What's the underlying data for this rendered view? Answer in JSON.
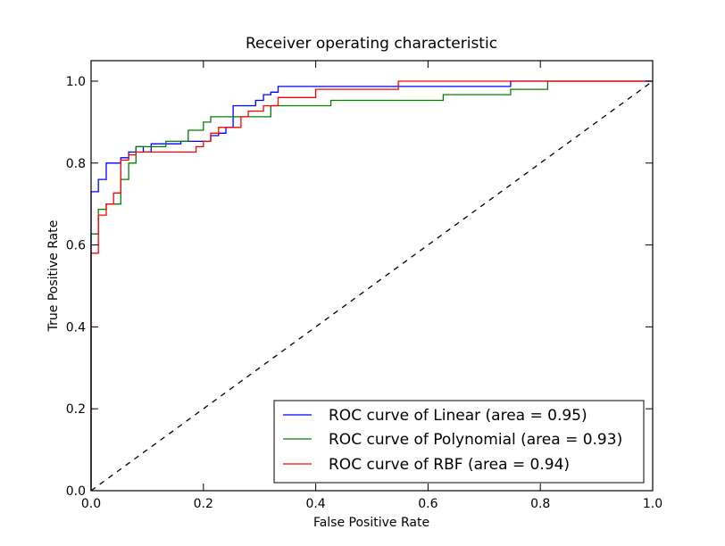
{
  "chart_data": {
    "type": "line",
    "title": "Receiver operating characteristic",
    "xlabel": "False Positive Rate",
    "ylabel": "True Positive Rate",
    "xlim": [
      0.0,
      1.0
    ],
    "ylim": [
      0.0,
      1.05
    ],
    "xticks": [
      0.0,
      0.2,
      0.4,
      0.6,
      0.8,
      1.0
    ],
    "yticks": [
      0.0,
      0.2,
      0.4,
      0.6,
      0.8,
      1.0
    ],
    "xtick_labels": [
      "0.0",
      "0.2",
      "0.4",
      "0.6",
      "0.8",
      "1.0"
    ],
    "ytick_labels": [
      "0.0",
      "0.2",
      "0.4",
      "0.6",
      "0.8",
      "1.0"
    ],
    "grid": false,
    "legend_position": "lower-right",
    "series": [
      {
        "name": "ROC curve of Linear (area = 0.95)",
        "color": "#0000ff",
        "style": "solid",
        "x": [
          0.0,
          0.0,
          0.013,
          0.013,
          0.027,
          0.027,
          0.053,
          0.053,
          0.067,
          0.067,
          0.08,
          0.08,
          0.093,
          0.093,
          0.107,
          0.107,
          0.16,
          0.16,
          0.213,
          0.213,
          0.227,
          0.227,
          0.24,
          0.24,
          0.253,
          0.253,
          0.293,
          0.293,
          0.307,
          0.307,
          0.32,
          0.32,
          0.333,
          0.333,
          0.747,
          0.747,
          1.0
        ],
        "y": [
          0.0,
          0.73,
          0.73,
          0.76,
          0.76,
          0.8,
          0.8,
          0.813,
          0.813,
          0.827,
          0.827,
          0.84,
          0.84,
          0.827,
          0.827,
          0.847,
          0.847,
          0.853,
          0.853,
          0.867,
          0.867,
          0.873,
          0.873,
          0.887,
          0.887,
          0.94,
          0.94,
          0.953,
          0.953,
          0.967,
          0.967,
          0.973,
          0.973,
          0.987,
          0.987,
          1.0,
          1.0
        ]
      },
      {
        "name": "ROC curve of Polynomial (area = 0.93)",
        "color": "#008000",
        "style": "solid",
        "x": [
          0.0,
          0.0,
          0.013,
          0.013,
          0.027,
          0.027,
          0.053,
          0.053,
          0.067,
          0.067,
          0.08,
          0.08,
          0.133,
          0.133,
          0.173,
          0.173,
          0.2,
          0.2,
          0.213,
          0.213,
          0.32,
          0.32,
          0.427,
          0.427,
          0.627,
          0.627,
          0.747,
          0.747,
          0.813,
          0.813,
          1.0
        ],
        "y": [
          0.0,
          0.627,
          0.627,
          0.687,
          0.687,
          0.7,
          0.7,
          0.76,
          0.76,
          0.8,
          0.8,
          0.84,
          0.84,
          0.853,
          0.853,
          0.88,
          0.88,
          0.9,
          0.9,
          0.913,
          0.913,
          0.94,
          0.94,
          0.953,
          0.953,
          0.967,
          0.967,
          0.98,
          0.98,
          1.0,
          1.0
        ]
      },
      {
        "name": "ROC curve of RBF (area = 0.94)",
        "color": "#ff0000",
        "style": "solid",
        "x": [
          0.0,
          0.0,
          0.013,
          0.013,
          0.027,
          0.027,
          0.04,
          0.04,
          0.053,
          0.053,
          0.067,
          0.067,
          0.08,
          0.08,
          0.187,
          0.187,
          0.2,
          0.2,
          0.213,
          0.213,
          0.227,
          0.227,
          0.267,
          0.267,
          0.28,
          0.28,
          0.307,
          0.307,
          0.333,
          0.333,
          0.4,
          0.4,
          0.547,
          0.547,
          1.0
        ],
        "y": [
          0.0,
          0.58,
          0.58,
          0.673,
          0.673,
          0.7,
          0.7,
          0.727,
          0.727,
          0.807,
          0.807,
          0.82,
          0.82,
          0.827,
          0.827,
          0.84,
          0.84,
          0.853,
          0.853,
          0.873,
          0.873,
          0.887,
          0.887,
          0.913,
          0.913,
          0.927,
          0.927,
          0.94,
          0.94,
          0.96,
          0.96,
          0.98,
          0.98,
          1.0,
          1.0
        ]
      },
      {
        "name": "",
        "color": "#000000",
        "style": "dashed",
        "x": [
          0.0,
          1.0
        ],
        "y": [
          0.0,
          1.0
        ]
      }
    ]
  }
}
